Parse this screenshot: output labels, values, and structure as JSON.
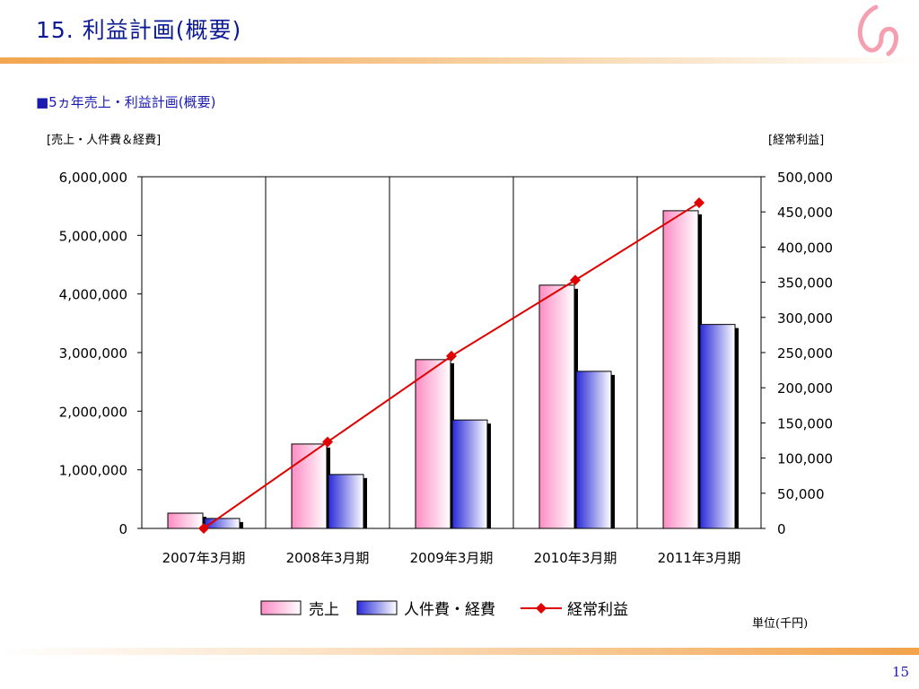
{
  "slide": {
    "title": "15. 利益計画(概要)",
    "section_heading": "■5ヵ年売上・利益計画(概要)",
    "unit_note": "単位(千円)",
    "page_number": "15"
  },
  "colors": {
    "title": "#0b1a94",
    "accent_orange": "#f2a64f",
    "sales_bar": "#ff9fcc",
    "cost_bar": "#4040e0",
    "profit_line": "#e00000"
  },
  "chart_data": {
    "type": "bar",
    "title": "",
    "categories": [
      "2007年3月期",
      "2008年3月期",
      "2009年3月期",
      "2010年3月期",
      "2011年3月期"
    ],
    "left_axis_label": "[売上・人件費＆経費]",
    "right_axis_label": "[経常利益]",
    "left_ylim": [
      0,
      6000000
    ],
    "right_ylim": [
      0,
      500000
    ],
    "left_ticks": [
      "0",
      "1,000,000",
      "2,000,000",
      "3,000,000",
      "4,000,000",
      "5,000,000",
      "6,000,000"
    ],
    "right_ticks": [
      "0",
      "50,000",
      "100,000",
      "150,000",
      "200,000",
      "250,000",
      "300,000",
      "350,000",
      "400,000",
      "450,000",
      "500,000"
    ],
    "series": [
      {
        "name": "売上",
        "type": "bar",
        "axis": "left",
        "values": [
          260000,
          1440000,
          2880000,
          4150000,
          5420000
        ]
      },
      {
        "name": "人件費・経費",
        "type": "bar",
        "axis": "left",
        "values": [
          170000,
          920000,
          1850000,
          2680000,
          3480000
        ]
      },
      {
        "name": "経常利益",
        "type": "line",
        "axis": "right",
        "values": [
          0,
          123000,
          245000,
          353000,
          463000
        ]
      }
    ],
    "grid": "vertical category separators",
    "legend": "bottom"
  }
}
